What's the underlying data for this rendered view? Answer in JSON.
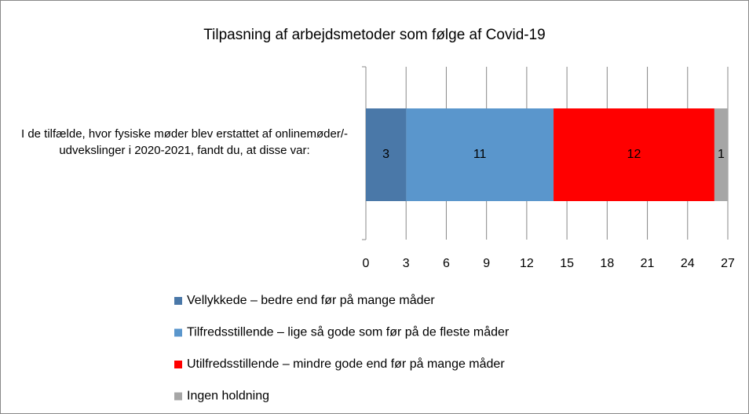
{
  "chart_data": {
    "type": "stacked_barh",
    "title": "Tilpasning af arbejdsmetoder som følge af Covid-19",
    "categories": [
      "I de tilfælde, hvor fysiske møder blev erstattet af onlinemøder/-udvekslinger i 2020-2021, fandt du, at disse var:"
    ],
    "series": [
      {
        "name": "Vellykkede – bedre end før på mange måder",
        "color": "#4a78a8",
        "values": [
          3
        ]
      },
      {
        "name": "Tilfredsstillende – lige så gode som før på de fleste måder",
        "color": "#5a96cc",
        "values": [
          11
        ]
      },
      {
        "name": "Utilfredsstillende – mindre gode end før på mange måder",
        "color": "#ff0000",
        "values": [
          12
        ]
      },
      {
        "name": "Ingen holdning",
        "color": "#a6a6a6",
        "values": [
          1
        ]
      }
    ],
    "xlim": [
      0,
      27
    ],
    "xticks": [
      0,
      3,
      6,
      9,
      12,
      15,
      18,
      21,
      24,
      27
    ],
    "grid": true
  }
}
